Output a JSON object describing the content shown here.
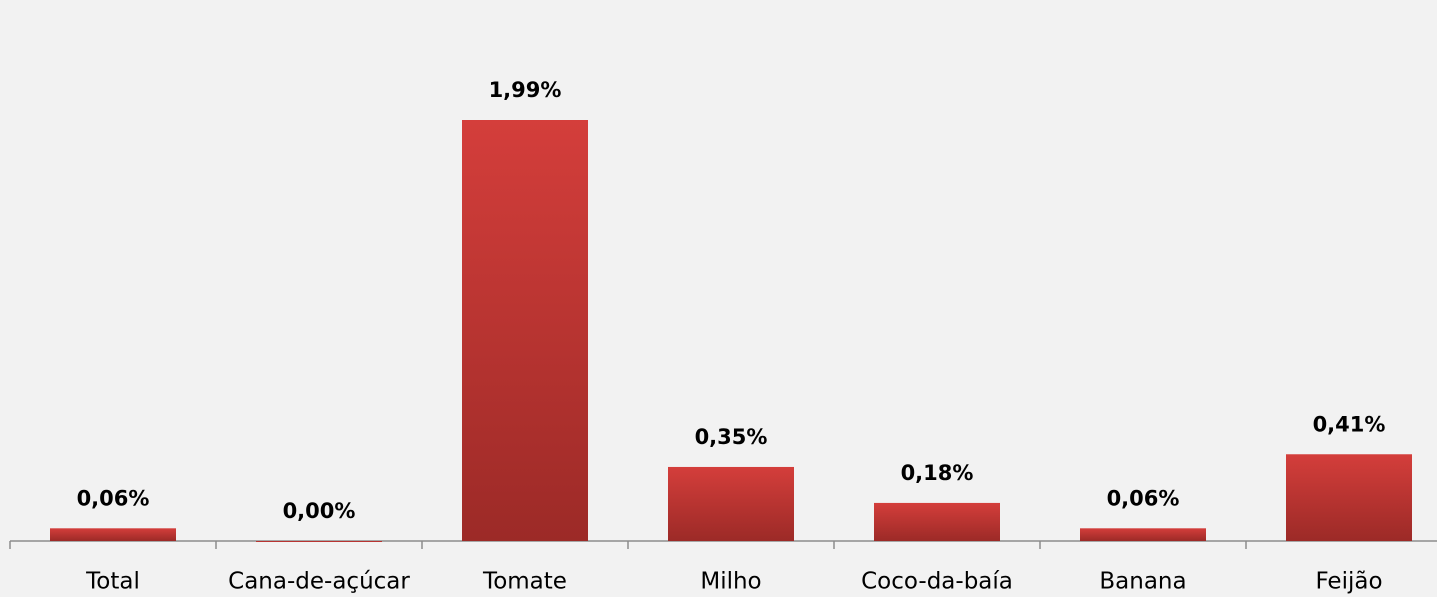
{
  "chart_data": {
    "type": "bar",
    "categories": [
      "Total",
      "Cana-de-açúcar",
      "Tomate",
      "Milho",
      "Coco-da-baía",
      "Banana",
      "Feijão"
    ],
    "values": [
      0.06,
      0.0,
      1.99,
      0.35,
      0.18,
      0.06,
      0.41
    ],
    "value_labels": [
      "0,06%",
      "0,00%",
      "1,99%",
      "0,35%",
      "0,18%",
      "0,06%",
      "0,41%"
    ],
    "color": "#c8373a"
  }
}
